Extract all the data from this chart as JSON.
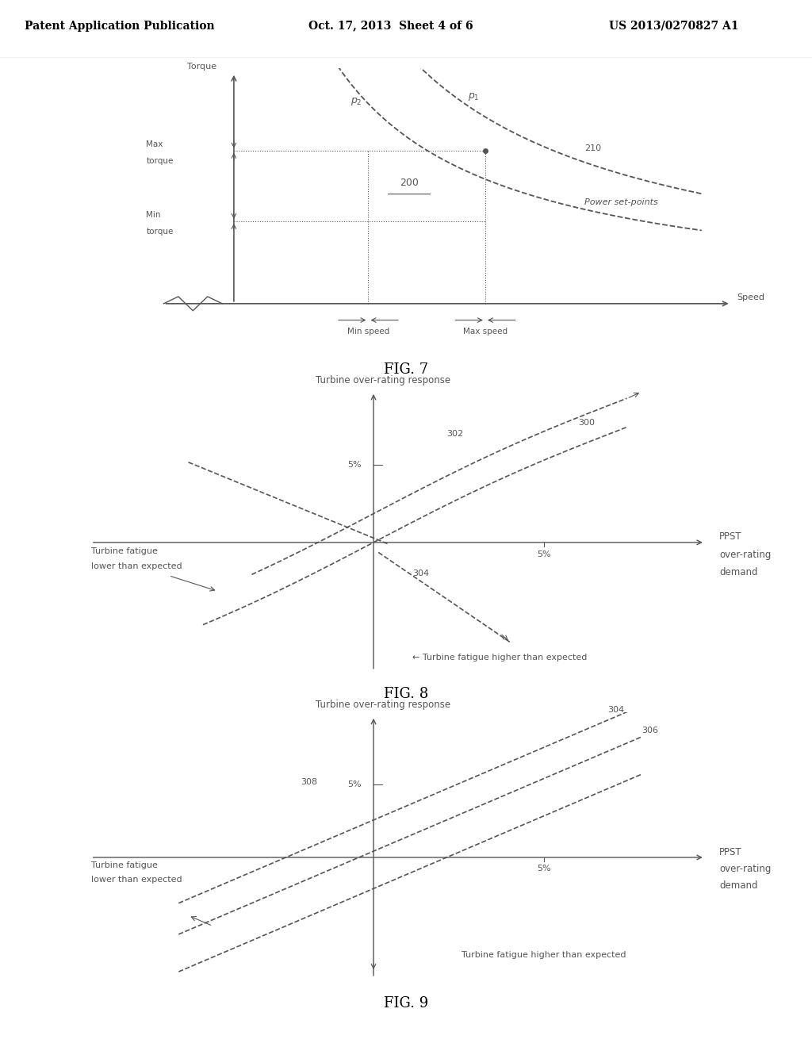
{
  "bg_color": "#ffffff",
  "text_color": "#555555",
  "line_color": "#888888",
  "header_text": "Patent Application Publication",
  "header_date": "Oct. 17, 2013  Sheet 4 of 6",
  "header_patent": "US 2013/0270827 A1",
  "fig7_title": "FIG. 7",
  "fig8_title": "FIG. 8",
  "fig9_title": "FIG. 9"
}
